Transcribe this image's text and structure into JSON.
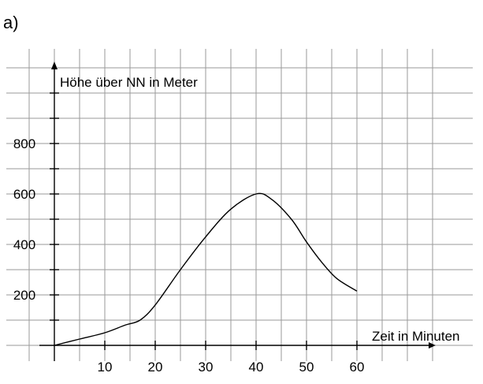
{
  "part_label": "a)",
  "chart_data": {
    "type": "line",
    "xlabel": "Zeit in Minuten",
    "ylabel": "Höhe über NN in Meter",
    "x_ticks": [
      10,
      20,
      30,
      40,
      50,
      60
    ],
    "y_ticks": [
      200,
      400,
      600,
      800
    ],
    "xlim": [
      -5,
      75
    ],
    "ylim": [
      -100,
      1100
    ],
    "grid": true,
    "x_grid_step": 5,
    "y_grid_step": 100,
    "series": [
      {
        "points": [
          [
            0,
            0
          ],
          [
            5,
            25
          ],
          [
            10,
            50
          ],
          [
            14,
            80
          ],
          [
            17,
            100
          ],
          [
            20,
            160
          ],
          [
            25,
            300
          ],
          [
            30,
            430
          ],
          [
            35,
            540
          ],
          [
            40,
            600
          ],
          [
            43,
            580
          ],
          [
            47,
            500
          ],
          [
            50,
            410
          ],
          [
            53,
            330
          ],
          [
            56,
            265
          ],
          [
            60,
            215
          ]
        ]
      }
    ]
  }
}
